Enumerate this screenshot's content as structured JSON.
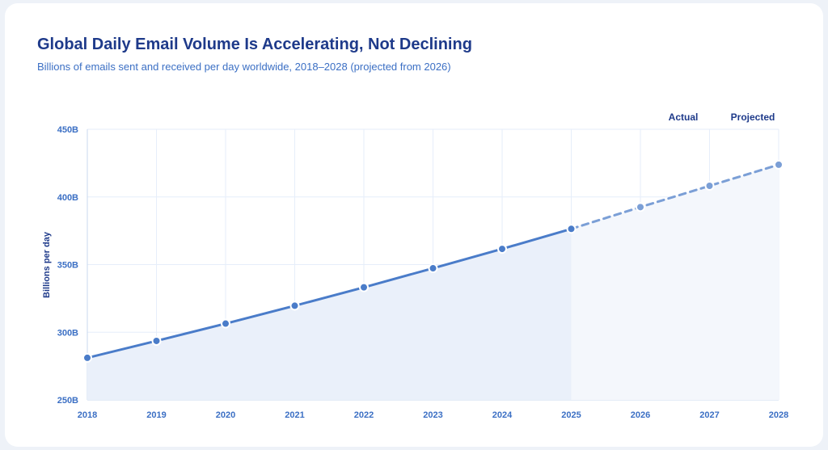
{
  "chart_data": {
    "type": "line",
    "title": "Global Daily Email Volume Is Accelerating, Not Declining",
    "subtitle": "Billions of emails sent and received per day worldwide, 2018–2028 (projected from 2026)",
    "xlabel": "",
    "ylabel": "Billions per day",
    "x": [
      2018,
      2019,
      2020,
      2021,
      2022,
      2023,
      2024,
      2025,
      2026,
      2027,
      2028
    ],
    "series": [
      {
        "name": "Actual",
        "x": [
          2018,
          2019,
          2020,
          2021,
          2022,
          2023,
          2024,
          2025
        ],
        "values": [
          281.1,
          293.6,
          306.4,
          319.6,
          333.2,
          347.3,
          361.6,
          376.4
        ],
        "style": "solid"
      },
      {
        "name": "Projected",
        "x": [
          2025,
          2026,
          2027,
          2028
        ],
        "values": [
          376.4,
          392.5,
          408.2,
          423.8
        ],
        "style": "dashed"
      }
    ],
    "ylim": [
      250,
      450
    ],
    "yticks": [
      "250B",
      "300B",
      "350B",
      "400B",
      "450B"
    ],
    "ytick_values": [
      250,
      300,
      350,
      400,
      450
    ],
    "xticks": [
      "2018",
      "2019",
      "2020",
      "2021",
      "2022",
      "2023",
      "2024",
      "2025",
      "2026",
      "2027",
      "2028"
    ],
    "grid": true,
    "legend": "top-right",
    "colors": {
      "line": "#4a7cc9",
      "projected": "#7b9fd6",
      "fill": "#eaf0fa",
      "text": "#1e3a8a",
      "tick": "#3b6fc4"
    }
  }
}
